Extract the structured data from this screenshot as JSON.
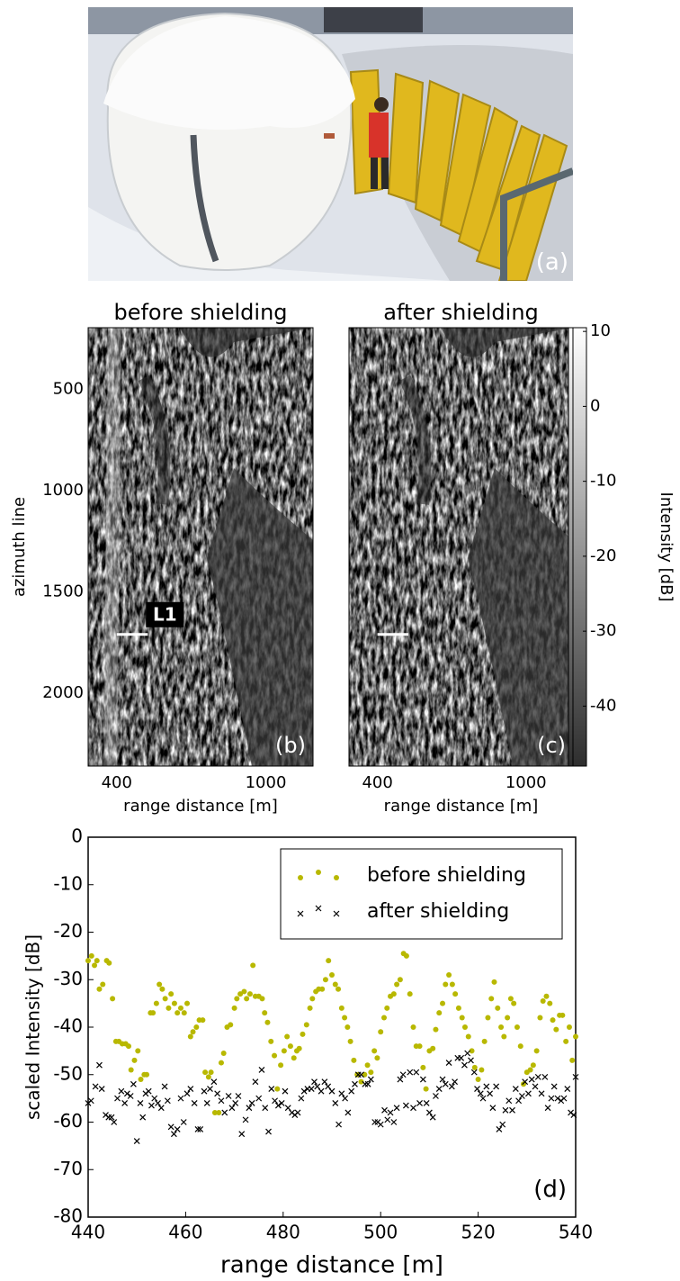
{
  "photo": {
    "panel_label": "(a)"
  },
  "chart_data": [
    {
      "type": "image",
      "title": "before shielding",
      "xlabel": "range distance [m]",
      "ylabel": "azimuth line",
      "xlim": [
        285,
        1190
      ],
      "ylim": [
        195,
        2360
      ],
      "xticks": [
        400,
        1000
      ],
      "yticks": [
        500,
        1000,
        1500,
        2000
      ],
      "marker_line": {
        "x": [
          400,
          525
        ],
        "y": 1710
      },
      "annotation": "L1",
      "panel_label": "(b)"
    },
    {
      "type": "image",
      "title": "after shielding",
      "xlabel": "range distance [m]",
      "xlim": [
        285,
        1190
      ],
      "ylim": [
        195,
        2360
      ],
      "xticks": [
        400,
        1000
      ],
      "marker_line": {
        "x": [
          400,
          525
        ],
        "y": 1710
      },
      "panel_label": "(c)"
    },
    {
      "type": "colorbar",
      "label": "Intensity [dB]",
      "ylim": [
        -48,
        10.5
      ],
      "yticks": [
        10,
        0,
        -10,
        -20,
        -30,
        -40
      ]
    },
    {
      "type": "scatter",
      "xlabel": "range distance [m]",
      "ylabel": "scaled Intensity [dB]",
      "xlim": [
        440,
        540
      ],
      "ylim": [
        -80,
        0
      ],
      "xticks": [
        440,
        460,
        480,
        500,
        520,
        540
      ],
      "yticks": [
        0,
        -10,
        -20,
        -30,
        -40,
        -50,
        -60,
        -70,
        -80
      ],
      "legend": "upper right",
      "panel_label": "(d)",
      "series": [
        {
          "name": "before shielding",
          "color": "#b8b800",
          "marker": "o",
          "x": [
            440,
            440.7,
            441.3,
            441.8,
            442.3,
            443,
            443.8,
            444.3,
            445,
            445.7,
            446.3,
            447,
            447.7,
            448.3,
            448.8,
            449.5,
            450.2,
            450.8,
            451.5,
            452,
            452.8,
            453.3,
            454,
            454.6,
            455.2,
            455.8,
            456.5,
            457,
            457.7,
            458.3,
            459,
            459.7,
            460.3,
            461,
            461.5,
            462.2,
            462.8,
            463.5,
            464,
            464.7,
            465.2,
            466,
            466.8,
            467.3,
            467.8,
            468.5,
            469.2,
            470,
            470.5,
            471.2,
            472,
            472.5,
            473.2,
            473.8,
            474.3,
            475,
            475.7,
            476.2,
            476.8,
            477.5,
            478.2,
            478.8,
            479.5,
            480.2,
            480.8,
            481.5,
            482.2,
            482.8,
            483.3,
            484,
            484.8,
            485.5,
            486,
            486.7,
            487.3,
            488,
            488.7,
            489.3,
            490,
            490.7,
            491.3,
            492,
            492.6,
            493.2,
            493.8,
            494.5,
            495.2,
            496,
            496.7,
            497.3,
            498,
            498.7,
            499.3,
            500,
            500.7,
            501.3,
            502,
            502.7,
            503.3,
            504,
            504.7,
            505.3,
            506,
            506.7,
            507.3,
            508,
            508.7,
            509.3,
            510,
            510.7,
            511.3,
            512,
            512.7,
            513.3,
            514,
            514.7,
            515.3,
            516,
            516.7,
            517.3,
            518,
            518.7,
            519.3,
            520,
            520.7,
            521.3,
            522,
            522.7,
            523.3,
            524,
            524.7,
            525.3,
            526,
            526.7,
            527.3,
            528,
            528.7,
            529.3,
            530,
            530.7,
            531.3,
            532,
            532.7,
            533.3,
            534,
            534.7,
            535.3,
            536,
            536.7,
            537.3,
            538,
            538.7,
            539.3,
            540
          ],
          "values": [
            -26,
            -25,
            -27,
            -26,
            -32,
            -31,
            -26,
            -26.5,
            -34,
            -43,
            -43,
            -43.5,
            -43.5,
            -44,
            -49,
            -47,
            -45,
            -51,
            -50,
            -50,
            -37,
            -37,
            -35,
            -31,
            -32,
            -34,
            -36,
            -33,
            -35,
            -37,
            -36,
            -37,
            -35,
            -42,
            -41,
            -40,
            -38.5,
            -38.5,
            -49.5,
            -50.5,
            -49.5,
            -58,
            -58,
            -47.5,
            -45.5,
            -40,
            -39.5,
            -36,
            -34,
            -33,
            -32.5,
            -34,
            -33,
            -27,
            -33.5,
            -33.5,
            -34,
            -37,
            -39,
            -43,
            -46,
            -53,
            -48,
            -45,
            -42,
            -44,
            -46.5,
            -45,
            -44.5,
            -41.5,
            -39.5,
            -36,
            -34,
            -32.5,
            -32,
            -32,
            -30,
            -26,
            -29,
            -31,
            -32,
            -36,
            -38,
            -40,
            -43,
            -47,
            -50,
            -51.5,
            -50,
            -48,
            -49.5,
            -45,
            -46.5,
            -41,
            -38,
            -36,
            -33.5,
            -33,
            -31,
            -30,
            -24.5,
            -25,
            -33,
            -40,
            -44,
            -44,
            -48.5,
            -53,
            -45,
            -44.5,
            -40.5,
            -37,
            -35,
            -31,
            -29,
            -31,
            -33,
            -36,
            -38,
            -40,
            -42,
            -45,
            -48.5,
            -51,
            -49,
            -43,
            -38,
            -34,
            -30.5,
            -36,
            -40,
            -42,
            -38,
            -34,
            -35,
            -40,
            -44,
            -52,
            -49.5,
            -49,
            -48,
            -45,
            -38,
            -34.5,
            -33.5,
            -35,
            -38.5,
            -40.5,
            -37.5,
            -37.5,
            -43,
            -40,
            -47,
            -42
          ]
        },
        {
          "name": "after shielding",
          "color": "#000000",
          "marker": "x",
          "x": [
            440,
            440.6,
            441.5,
            442.3,
            442.8,
            443.6,
            444.2,
            444.8,
            445.3,
            446,
            446.8,
            447.5,
            448,
            448.7,
            449.3,
            450,
            450.7,
            451.2,
            451.8,
            452.4,
            453,
            453.6,
            454.3,
            455,
            455.7,
            456.3,
            457,
            457.6,
            458.3,
            459,
            459.6,
            460.3,
            461,
            461.8,
            462.5,
            463,
            463.8,
            464.4,
            465,
            465.8,
            466.5,
            467.3,
            468,
            468.8,
            469.5,
            470.2,
            470.8,
            471.5,
            472.3,
            473,
            473.6,
            474.3,
            475,
            475.6,
            476.3,
            477,
            477.6,
            478.3,
            479,
            479.7,
            480.4,
            481,
            481.8,
            482.4,
            483,
            483.7,
            484.3,
            485,
            485.8,
            486.4,
            487,
            487.8,
            488.5,
            489.2,
            490,
            490.7,
            491.4,
            492,
            492.7,
            493.3,
            494,
            494.7,
            495.4,
            496,
            496.8,
            497.4,
            498,
            498.8,
            499.4,
            500,
            500.8,
            501.4,
            502,
            502.7,
            503.3,
            504,
            504.6,
            505.2,
            506,
            506.7,
            507.3,
            508,
            508.7,
            509.4,
            510,
            510.7,
            511.3,
            512,
            512.7,
            513.3,
            514,
            514.6,
            515.2,
            515.8,
            516.5,
            517.2,
            517.8,
            518.5,
            519.2,
            519.8,
            520.5,
            521,
            521.7,
            522.4,
            523,
            523.7,
            524.3,
            525,
            525.6,
            526.3,
            527,
            527.7,
            528.3,
            529,
            529.6,
            530.3,
            531,
            531.7,
            532.3,
            533,
            533.7,
            534.3,
            535,
            535.6,
            536.3,
            537,
            537.6,
            538.3,
            539,
            539.6,
            540
          ],
          "values": [
            -56,
            -55.5,
            -52.5,
            -48,
            -53,
            -58.5,
            -59,
            -59,
            -60,
            -55,
            -53.5,
            -56,
            -54,
            -54.5,
            -52,
            -64,
            -56,
            -59,
            -54,
            -53.5,
            -56.5,
            -55,
            -56,
            -57,
            -52.5,
            -55.5,
            -61,
            -62.5,
            -61.5,
            -55,
            -60,
            -54,
            -53,
            -56,
            -61.5,
            -61.5,
            -53.5,
            -56,
            -53,
            -51.5,
            -54,
            -55.5,
            -58,
            -54.5,
            -57,
            -56,
            -54.5,
            -62.5,
            -59.5,
            -57,
            -56,
            -51.5,
            -55,
            -49,
            -57,
            -62,
            -53,
            -55.5,
            -56.5,
            -56,
            -53.5,
            -57,
            -58,
            -58.5,
            -58,
            -55,
            -53.5,
            -53,
            -53,
            -51.5,
            -52.5,
            -53.5,
            -51.5,
            -52.5,
            -53.5,
            -56,
            -60.5,
            -54,
            -55,
            -58,
            -53.5,
            -52,
            -50,
            -50,
            -52,
            -52,
            -51,
            -60,
            -60,
            -60.5,
            -57.5,
            -59.5,
            -58,
            -60,
            -57,
            -51,
            -50,
            -56.5,
            -49.5,
            -57,
            -49.5,
            -56,
            -51,
            -56,
            -58,
            -59,
            -54.5,
            -53,
            -51,
            -52,
            -47.5,
            -52.5,
            -51.5,
            -46.5,
            -46.5,
            -48,
            -45.5,
            -47,
            -49.5,
            -53,
            -54,
            -55,
            -52.5,
            -54,
            -57,
            -52.5,
            -61.5,
            -60.5,
            -57.5,
            -55.5,
            -57.5,
            -53,
            -55.5,
            -54.5,
            -51.5,
            -54,
            -51,
            -52.5,
            -50.5,
            -54,
            -50.5,
            -57,
            -55,
            -52.5,
            -55,
            -55.5,
            -55,
            -53,
            -58,
            -58.5,
            -50.5
          ]
        }
      ]
    }
  ]
}
